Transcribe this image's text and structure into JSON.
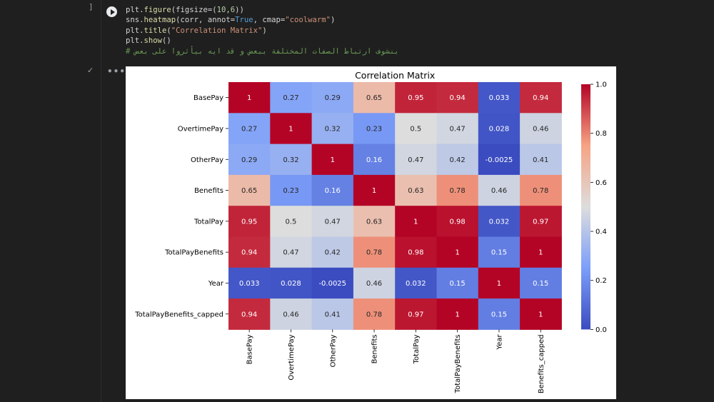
{
  "cell_prompt": "]",
  "code_lines": [
    "plt.figure(figsize=(10,6))",
    "sns.heatmap(corr, annot=True, cmap=\"coolwarm\")",
    "plt.title(\"Correlation Matrix\")",
    "plt.show()",
    "# بنشوف ارتباط الصفات المختلفة ببعض و قد ايه بيأثروا على بعض"
  ],
  "output_status": "✓",
  "output_menu": "•••",
  "chart_data": {
    "type": "heatmap",
    "title": "Correlation Matrix",
    "colormap": "coolwarm",
    "labels": [
      "BasePay",
      "OvertimePay",
      "OtherPay",
      "Benefits",
      "TotalPay",
      "TotalPayBenefits",
      "Year",
      "TotalPayBenefits_capped"
    ],
    "x_labels": [
      "BasePay",
      "OvertimePay",
      "OtherPay",
      "Benefits",
      "TotalPay",
      "TotalPayBenefits",
      "Year",
      "Benefits_capped"
    ],
    "values": [
      [
        1,
        0.27,
        0.29,
        0.65,
        0.95,
        0.94,
        0.033,
        0.94
      ],
      [
        0.27,
        1,
        0.32,
        0.23,
        0.5,
        0.47,
        0.028,
        0.46
      ],
      [
        0.29,
        0.32,
        1,
        0.16,
        0.47,
        0.42,
        -0.0025,
        0.41
      ],
      [
        0.65,
        0.23,
        0.16,
        1,
        0.63,
        0.78,
        0.46,
        0.78
      ],
      [
        0.95,
        0.5,
        0.47,
        0.63,
        1,
        0.98,
        0.032,
        0.97
      ],
      [
        0.94,
        0.47,
        0.42,
        0.78,
        0.98,
        1,
        0.15,
        1
      ],
      [
        0.033,
        0.028,
        -0.0025,
        0.46,
        0.032,
        0.15,
        1,
        0.15
      ],
      [
        0.94,
        0.46,
        0.41,
        0.78,
        0.97,
        1,
        0.15,
        1
      ]
    ],
    "display_values": [
      [
        "1",
        "0.27",
        "0.29",
        "0.65",
        "0.95",
        "0.94",
        "0.033",
        "0.94"
      ],
      [
        "0.27",
        "1",
        "0.32",
        "0.23",
        "0.5",
        "0.47",
        "0.028",
        "0.46"
      ],
      [
        "0.29",
        "0.32",
        "1",
        "0.16",
        "0.47",
        "0.42",
        "-0.0025",
        "0.41"
      ],
      [
        "0.65",
        "0.23",
        "0.16",
        "1",
        "0.63",
        "0.78",
        "0.46",
        "0.78"
      ],
      [
        "0.95",
        "0.5",
        "0.47",
        "0.63",
        "1",
        "0.98",
        "0.032",
        "0.97"
      ],
      [
        "0.94",
        "0.47",
        "0.42",
        "0.78",
        "0.98",
        "1",
        "0.15",
        "1"
      ],
      [
        "0.033",
        "0.028",
        "-0.0025",
        "0.46",
        "0.032",
        "0.15",
        "1",
        "0.15"
      ],
      [
        "0.94",
        "0.46",
        "0.41",
        "0.78",
        "0.97",
        "1",
        "0.15",
        "1"
      ]
    ],
    "colorbar": {
      "range": [
        0.0,
        1.0
      ],
      "ticks": [
        "0.0",
        "0.2",
        "0.4",
        "0.6",
        "0.8",
        "1.0"
      ]
    }
  }
}
